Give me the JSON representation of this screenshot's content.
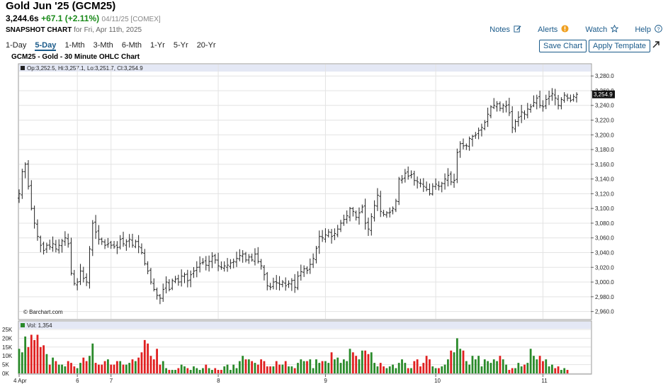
{
  "header": {
    "title": "Gold Jun '25 (GCM25)",
    "price": "3,244.6s",
    "change": "+67.1 (+2.11%)",
    "date_exchange": "04/11/25 [COMEX]",
    "snapshot_label": "SNAPSHOT CHART",
    "snapshot_date": "for Fri, Apr 11th, 2025"
  },
  "links": {
    "notes": "Notes",
    "alerts": "Alerts",
    "watch": "Watch",
    "help": "Help"
  },
  "icons": [
    "edit-icon",
    "alert-icon",
    "star-icon",
    "help-icon",
    "expand-icon"
  ],
  "periods": [
    "1-Day",
    "5-Day",
    "1-Mth",
    "3-Mth",
    "6-Mth",
    "1-Yr",
    "5-Yr",
    "20-Yr"
  ],
  "active_period": "5-Day",
  "buttons": {
    "save": "Save Chart",
    "apply": "Apply Template"
  },
  "chart_title": "GCM25 - Gold - 30 Minute OHLC Chart",
  "ohlc_label": "Op:3,252.5, Hi:3,257.1, Lo:3,251.7, Cl:3,254.9",
  "last_price_label": "3,254.9",
  "vol_label": "Vol: 1,354",
  "watermark": "© Barchart.com",
  "colors": {
    "up": "#2a8a2a",
    "down": "#e02020",
    "bar": "#222222",
    "accent": "#1a5a8a",
    "panel_header": "#e4e8f5"
  },
  "chart_data": [
    {
      "type": "ohlc",
      "title": "GCM25 - Gold - 30 Minute OHLC Chart",
      "ylim": [
        2950,
        3285
      ],
      "y_ticks": [
        "3,280.0",
        "3,260.0",
        "3,240.0",
        "3,220.0",
        "3,200.0",
        "3,180.0",
        "3,160.0",
        "3,140.0",
        "3,120.0",
        "3,100.0",
        "3,080.0",
        "3,060.0",
        "3,040.0",
        "3,020.0",
        "3,000.0",
        "2,980.0",
        "2,960.0"
      ],
      "y_tick_values": [
        3280,
        3260,
        3240,
        3220,
        3200,
        3180,
        3160,
        3140,
        3120,
        3100,
        3080,
        3060,
        3040,
        3020,
        3000,
        2980,
        2960
      ],
      "x_labels": [
        "4 Apr",
        "6",
        "7",
        "8",
        "9",
        "10",
        "11"
      ],
      "x_label_bar_index": [
        0,
        19,
        30,
        65,
        100,
        136,
        171
      ],
      "closes": [
        3120,
        3150,
        3160,
        3130,
        3100,
        3080,
        3062,
        3050,
        3043,
        3050,
        3048,
        3052,
        3045,
        3050,
        3056,
        3060,
        3052,
        3012,
        2998,
        3000,
        3015,
        3005,
        3000,
        3045,
        3080,
        3068,
        3058,
        3055,
        3050,
        3052,
        3050,
        3048,
        3047,
        3058,
        3052,
        3055,
        3058,
        3050,
        3055,
        3048,
        3040,
        3025,
        3015,
        3000,
        2990,
        2982,
        2978,
        2990,
        3000,
        2990,
        3002,
        3004,
        3000,
        3008,
        3010,
        3002,
        3010,
        3015,
        3020,
        3025,
        3027,
        3023,
        3028,
        3035,
        3030,
        3022,
        3020,
        3022,
        3023,
        3026,
        3028,
        3032,
        3036,
        3038,
        3030,
        3034,
        3030,
        3038,
        3028,
        3022,
        3010,
        2995,
        2993,
        3000,
        2999,
        2997,
        3000,
        2995,
        2998,
        3002,
        2993,
        3008,
        3014,
        3018,
        3016,
        3024,
        3032,
        3046,
        3062,
        3060,
        3064,
        3068,
        3062,
        3066,
        3072,
        3080,
        3085,
        3090,
        3100,
        3096,
        3088,
        3094,
        3102,
        3080,
        3072,
        3089,
        3104,
        3118,
        3096,
        3092,
        3094,
        3095,
        3100,
        3110,
        3140,
        3140,
        3148,
        3144,
        3146,
        3138,
        3136,
        3134,
        3130,
        3126,
        3120,
        3130,
        3133,
        3130,
        3134,
        3140,
        3145,
        3136,
        3138,
        3176,
        3188,
        3185,
        3185,
        3195,
        3198,
        3200,
        3206,
        3210,
        3217,
        3228,
        3238,
        3240,
        3242,
        3236,
        3240,
        3240,
        3230,
        3210,
        3218,
        3224,
        3231,
        3228,
        3235,
        3238,
        3244,
        3250,
        3240,
        3238,
        3248,
        3252,
        3256,
        3250,
        3240,
        3248,
        3254,
        3250,
        3247,
        3252,
        3255
      ],
      "volumes": [
        14,
        12,
        21,
        15,
        22,
        19,
        22,
        15,
        16,
        11,
        5,
        9,
        7,
        5,
        5,
        4,
        7,
        6,
        4,
        3,
        6,
        9,
        7,
        10,
        17,
        6,
        5,
        5,
        7,
        8,
        5,
        5,
        7,
        7,
        5,
        5,
        6,
        8,
        7,
        9,
        12,
        19,
        17,
        10,
        8,
        14,
        5,
        7,
        3,
        2,
        2,
        2,
        3,
        5,
        4,
        3,
        2,
        4,
        3,
        2,
        3,
        5,
        3,
        2,
        3,
        2,
        2,
        4,
        5,
        2,
        5,
        3,
        7,
        10,
        8,
        8,
        7,
        6,
        5,
        8,
        7,
        4,
        4,
        4,
        7,
        5,
        5,
        7,
        4,
        4,
        3,
        6,
        8,
        7,
        7,
        8,
        3,
        8,
        6,
        7,
        7,
        6,
        12,
        8,
        9,
        6,
        8,
        7,
        14,
        12,
        10,
        8,
        13,
        13,
        11,
        12,
        6,
        4,
        6,
        4,
        3,
        4,
        5,
        3,
        6,
        8,
        6,
        3,
        3,
        7,
        8,
        4,
        6,
        10,
        8,
        4,
        3,
        3,
        4,
        5,
        8,
        13,
        12,
        20,
        14,
        13,
        7,
        5,
        10,
        8,
        10,
        4,
        8,
        7,
        6,
        8,
        7,
        10,
        8,
        5,
        2,
        3,
        3,
        6,
        4,
        5,
        6,
        14,
        10,
        8,
        10,
        7,
        8,
        4,
        5,
        3,
        4,
        2,
        3,
        2
      ],
      "vol_ylim": [
        0,
        25000
      ],
      "vol_y_ticks": [
        "25K",
        "20K",
        "15K",
        "10K",
        "5K",
        "0K"
      ],
      "vol_y_tick_values": [
        25,
        20,
        15,
        10,
        5,
        0
      ]
    }
  ]
}
